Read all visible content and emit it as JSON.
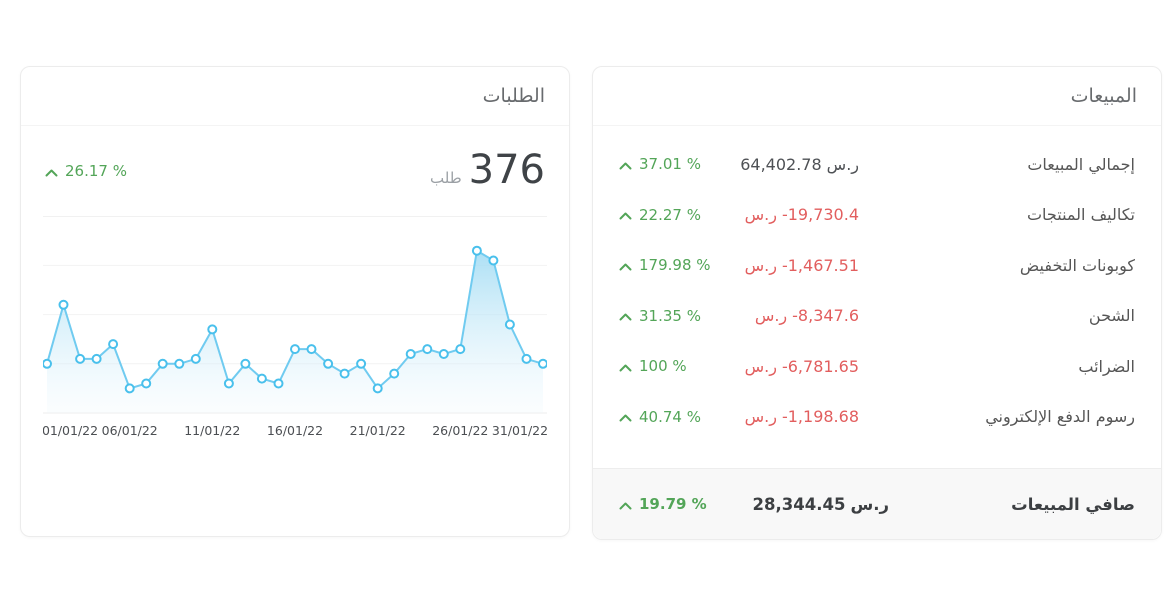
{
  "colors": {
    "green": "#53a558",
    "red": "#e25e5e",
    "chart-line": "#70cbf0",
    "chart-marker": "#49c0ec",
    "chart-area-top": "#9ddaf3",
    "chart-area-bottom": "#eef8fd",
    "chart-grid": "#f2f2f2",
    "chart-axis-text": "#4b4e52"
  },
  "orders_card": {
    "title": "الطلبات",
    "total": "376",
    "unit": "طلب",
    "change": {
      "percent": "26.17 %",
      "direction": "up"
    }
  },
  "chart_data": {
    "type": "area",
    "title": "الطلبات",
    "x": [
      "01/01/22",
      "02/01/22",
      "03/01/22",
      "04/01/22",
      "05/01/22",
      "06/01/22",
      "07/01/22",
      "08/01/22",
      "09/01/22",
      "10/01/22",
      "11/01/22",
      "12/01/22",
      "13/01/22",
      "14/01/22",
      "15/01/22",
      "16/01/22",
      "17/01/22",
      "18/01/22",
      "19/01/22",
      "20/01/22",
      "21/01/22",
      "22/01/22",
      "23/01/22",
      "24/01/22",
      "25/01/22",
      "26/01/22",
      "27/01/22",
      "28/01/22",
      "29/01/22",
      "30/01/22",
      "31/01/22"
    ],
    "values": [
      10,
      22,
      11,
      11,
      14,
      5,
      6,
      10,
      10,
      11,
      17,
      6,
      10,
      7,
      6,
      13,
      13,
      10,
      8,
      10,
      5,
      8,
      12,
      13,
      12,
      13,
      33,
      31,
      18,
      11,
      10
    ],
    "total": 376,
    "xlabel": "",
    "ylabel": "",
    "ylim": [
      0,
      37
    ],
    "gridlines": [
      10,
      20,
      30
    ],
    "grid": "horizontal",
    "legend": "none",
    "tick_every": 5,
    "x_tick_labels": [
      "01/01/22",
      "06/01/22",
      "11/01/22",
      "16/01/22",
      "21/01/22",
      "26/01/22",
      "31/01/22"
    ]
  },
  "sales_card": {
    "title": "المبيعات",
    "rows": [
      {
        "label": "إجمالي المبيعات",
        "amount": "64,402.78",
        "currency": "ر.س",
        "negative": false,
        "change": "37.01 %",
        "direction": "up"
      },
      {
        "label": "تكاليف المنتجات",
        "amount": "-19,730.4",
        "currency": "ر.س",
        "negative": true,
        "change": "22.27 %",
        "direction": "up"
      },
      {
        "label": "كوبونات التخفيض",
        "amount": "-1,467.51",
        "currency": "ر.س",
        "negative": true,
        "change": "179.98 %",
        "direction": "up"
      },
      {
        "label": "الشحن",
        "amount": "-8,347.6",
        "currency": "ر.س",
        "negative": true,
        "change": "31.35 %",
        "direction": "up"
      },
      {
        "label": "الضرائب",
        "amount": "-6,781.65",
        "currency": "ر.س",
        "negative": true,
        "change": "100 %",
        "direction": "up"
      },
      {
        "label": "رسوم الدفع الإلكتروني",
        "amount": "-1,198.68",
        "currency": "ر.س",
        "negative": true,
        "change": "40.74 %",
        "direction": "up"
      }
    ],
    "footer": {
      "label": "صافي المبيعات",
      "amount": "28,344.45",
      "currency": "ر.س",
      "negative": false,
      "change": "19.79 %",
      "direction": "up"
    }
  }
}
